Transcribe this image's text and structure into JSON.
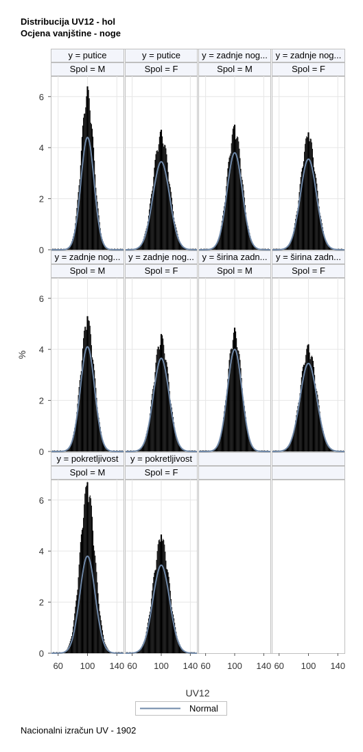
{
  "titles": [
    "Distribucija UV12 - hol",
    "Ocjena vanjštine - noge"
  ],
  "footnote": "Nacionalni izračun UV - 1902",
  "chart_data": {
    "type": "histogram-panel",
    "xlabel": "UV12",
    "ylabel": "%",
    "xlim": [
      50,
      150
    ],
    "ylim": [
      0,
      6.8
    ],
    "xticks": [
      60,
      100,
      140
    ],
    "yticks": [
      0,
      2,
      4,
      6
    ],
    "legend": {
      "position": "bottom-center",
      "entries": [
        "Normal"
      ]
    },
    "colors": {
      "bars": "#000000",
      "normal_curve": "#6f88a8",
      "header_bg": "#f3f5fb",
      "grid": "#e6e6e6"
    },
    "panels": [
      {
        "y_label": "y = putice",
        "spol_label": "Spol = M",
        "hist_peak": 6.4,
        "normal_peak": 4.4,
        "mean": 100,
        "sd": 9
      },
      {
        "y_label": "y = putice",
        "spol_label": "Spol = F",
        "hist_peak": 4.7,
        "normal_peak": 3.45,
        "mean": 100,
        "sd": 11.5
      },
      {
        "y_label": "y = zadnje nog...",
        "spol_label": "Spol = M",
        "hist_peak": 4.9,
        "normal_peak": 3.8,
        "mean": 100,
        "sd": 10.5
      },
      {
        "y_label": "y = zadnje nog...",
        "spol_label": "Spol = F",
        "hist_peak": 4.6,
        "normal_peak": 3.55,
        "mean": 100,
        "sd": 11
      },
      {
        "y_label": "y = zadnje nog...",
        "spol_label": "Spol = M",
        "hist_peak": 5.3,
        "normal_peak": 4.1,
        "mean": 100,
        "sd": 9.7
      },
      {
        "y_label": "y = zadnje nog...",
        "spol_label": "Spol = F",
        "hist_peak": 4.6,
        "normal_peak": 3.65,
        "mean": 100,
        "sd": 10.8
      },
      {
        "y_label": "y = širina zadn...",
        "spol_label": "Spol = M",
        "hist_peak": 4.85,
        "normal_peak": 4.0,
        "mean": 100,
        "sd": 9.9
      },
      {
        "y_label": "y = širina zadn...",
        "spol_label": "Spol = F",
        "hist_peak": 4.2,
        "normal_peak": 3.45,
        "mean": 100,
        "sd": 11.5
      },
      {
        "y_label": "y = pokretljivost",
        "spol_label": "Spol = M",
        "hist_peak": 6.7,
        "normal_peak": 3.8,
        "mean": 100,
        "sd": 10.5
      },
      {
        "y_label": "y = pokretljivost",
        "spol_label": "Spol = F",
        "hist_peak": 4.65,
        "normal_peak": 3.45,
        "mean": 100,
        "sd": 11.5
      }
    ]
  }
}
